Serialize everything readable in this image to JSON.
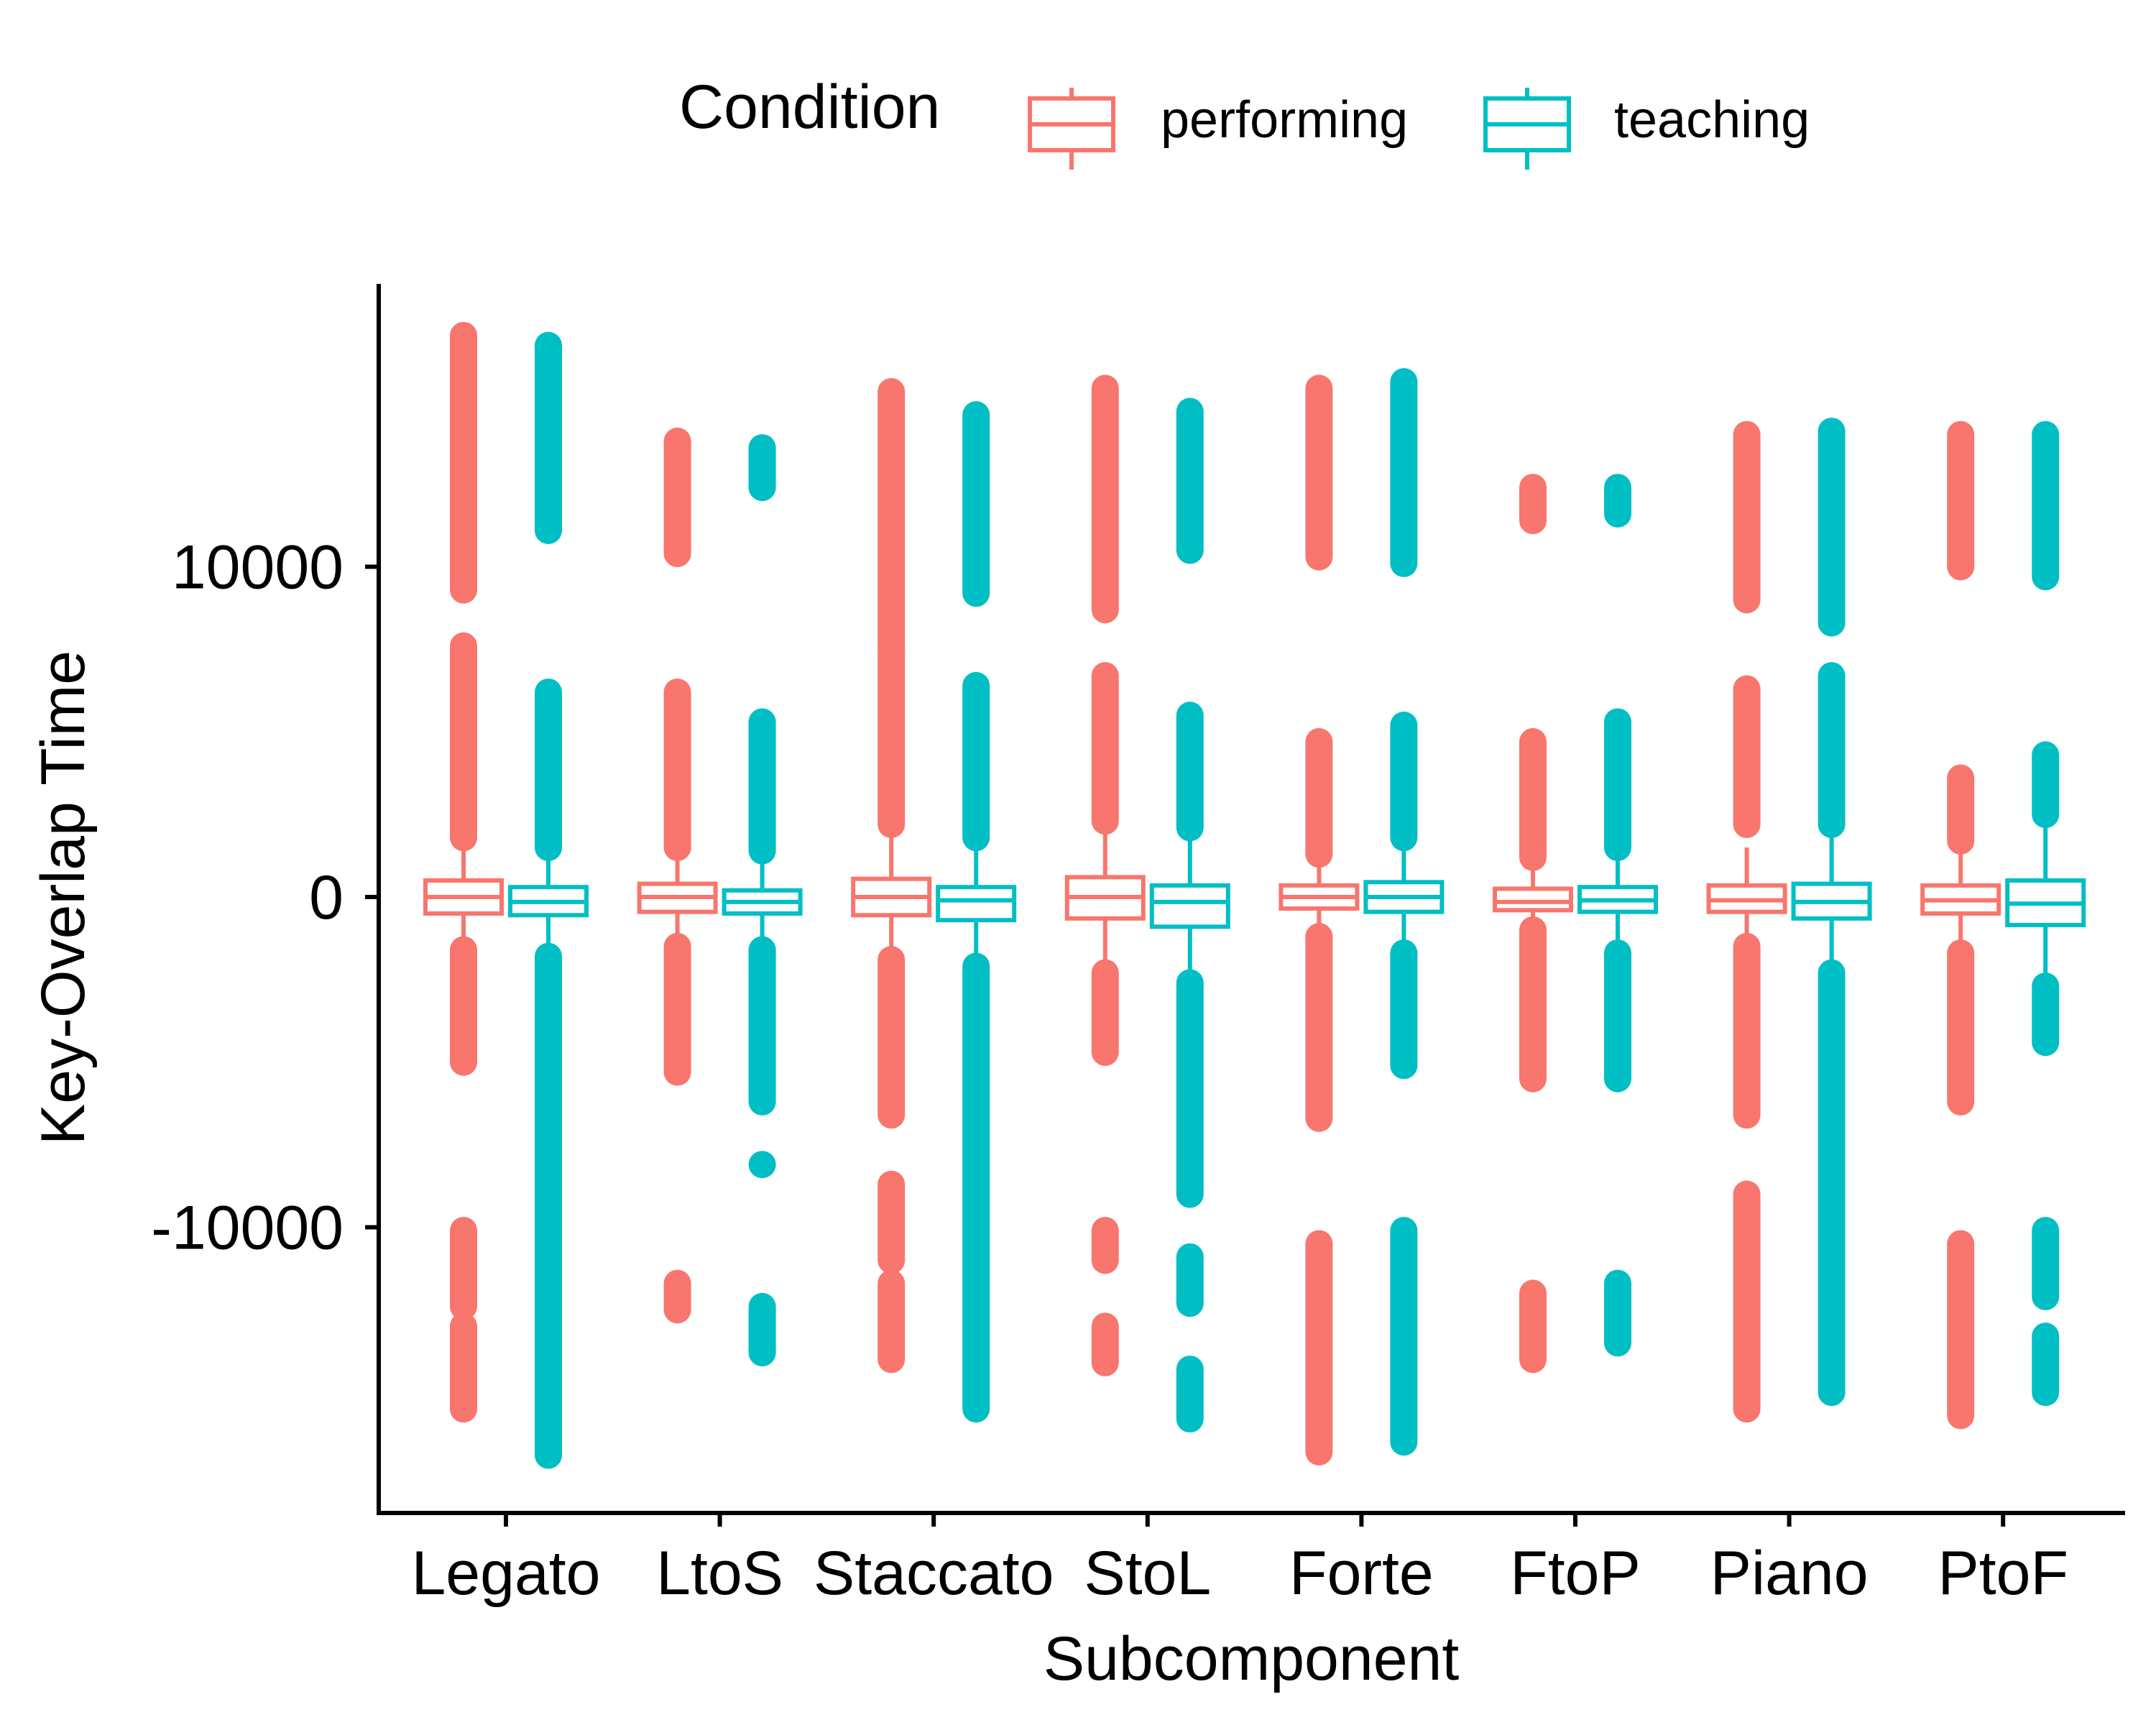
{
  "chart_data": {
    "type": "box",
    "xlabel": "Subcomponent",
    "ylabel": "Key-Overlap Time",
    "categories": [
      "Legato",
      "LtoS",
      "Staccato",
      "StoL",
      "Forte",
      "FtoP",
      "Piano",
      "PtoF"
    ],
    "ylim": [
      -18800,
      18200
    ],
    "yticks": [
      -10000,
      0,
      10000
    ],
    "ytick_labels": [
      "-10000",
      "0",
      "10000"
    ],
    "legend": {
      "title": "Condition",
      "position": "top"
    },
    "series": [
      {
        "name": "performing",
        "color": "#F8766D",
        "boxes": [
          {
            "q1": -500,
            "median": 0,
            "q3": 500,
            "whisker_low": -1500,
            "whisker_high": 1500
          },
          {
            "q1": -450,
            "median": 0,
            "q3": 400,
            "whisker_low": -1500,
            "whisker_high": 1500
          },
          {
            "q1": -550,
            "median": 0,
            "q3": 550,
            "whisker_low": -1800,
            "whisker_high": 1800
          },
          {
            "q1": -650,
            "median": 0,
            "q3": 600,
            "whisker_low": -1900,
            "whisker_high": 1900
          },
          {
            "q1": -350,
            "median": 0,
            "q3": 350,
            "whisker_low": -1200,
            "whisker_high": 1200
          },
          {
            "q1": -400,
            "median": -150,
            "q3": 250,
            "whisker_low": -1000,
            "whisker_high": 1000
          },
          {
            "q1": -450,
            "median": -100,
            "q3": 350,
            "whisker_low": -1500,
            "whisker_high": 1500
          },
          {
            "q1": -500,
            "median": -100,
            "q3": 350,
            "whisker_low": -1700,
            "whisker_high": 1700
          }
        ],
        "outlier_ranges": [
          [
            [
              1800,
              7600
            ],
            [
              9300,
              17000
            ],
            [
              -5000,
              -1600
            ],
            [
              -12400,
              -10100
            ],
            [
              -15500,
              -13000
            ]
          ],
          [
            [
              1500,
              6200
            ],
            [
              10400,
              13800
            ],
            [
              -5300,
              -1500
            ],
            [
              -12500,
              -11700
            ]
          ],
          [
            [
              2200,
              7500
            ],
            [
              7500,
              15300
            ],
            [
              -6600,
              -1900
            ],
            [
              -11000,
              -8700
            ],
            [
              -14000,
              -11700
            ]
          ],
          [
            [
              2300,
              6700
            ],
            [
              8700,
              15400
            ],
            [
              -4700,
              -2300
            ],
            [
              -11000,
              -10100
            ],
            [
              -14100,
              -13000
            ]
          ],
          [
            [
              1300,
              4700
            ],
            [
              10300,
              15400
            ],
            [
              -6700,
              -1200
            ],
            [
              -16800,
              -10500
            ]
          ],
          [
            [
              1200,
              4700
            ],
            [
              11400,
              12400
            ],
            [
              -5500,
              -1000
            ],
            [
              -14000,
              -12000
            ]
          ],
          [
            [
              2200,
              6300
            ],
            [
              9000,
              14000
            ],
            [
              -6600,
              -1500
            ],
            [
              -15500,
              -9000
            ]
          ],
          [
            [
              1700,
              3600
            ],
            [
              10000,
              14000
            ],
            [
              -6200,
              -1700
            ],
            [
              -15700,
              -10500
            ]
          ]
        ]
      },
      {
        "name": "teaching",
        "color": "#00BFC4",
        "boxes": [
          {
            "q1": -550,
            "median": -150,
            "q3": 300,
            "whisker_low": -1800,
            "whisker_high": 1500
          },
          {
            "q1": -500,
            "median": -150,
            "q3": 200,
            "whisker_low": -1600,
            "whisker_high": 1400
          },
          {
            "q1": -700,
            "median": -100,
            "q3": 300,
            "whisker_low": -2100,
            "whisker_high": 1800
          },
          {
            "q1": -900,
            "median": -150,
            "q3": 350,
            "whisker_low": -2600,
            "whisker_high": 2100
          },
          {
            "q1": -450,
            "median": 0,
            "q3": 450,
            "whisker_low": -1700,
            "whisker_high": 1800
          },
          {
            "q1": -450,
            "median": -100,
            "q3": 300,
            "whisker_low": -1700,
            "whisker_high": 1500
          },
          {
            "q1": -650,
            "median": -150,
            "q3": 400,
            "whisker_low": -2300,
            "whisker_high": 2200
          },
          {
            "q1": -850,
            "median": -200,
            "q3": 500,
            "whisker_low": -2700,
            "whisker_high": 2500
          }
        ],
        "outlier_ranges": [
          [
            [
              1500,
              6200
            ],
            [
              11100,
              16700
            ],
            [
              -16900,
              -1800
            ]
          ],
          [
            [
              1400,
              5300
            ],
            [
              12400,
              13600
            ],
            [
              -6200,
              -1600
            ],
            [
              -8100,
              -8100
            ],
            [
              -13800,
              -12400
            ]
          ],
          [
            [
              1800,
              6400
            ],
            [
              9200,
              14600
            ],
            [
              -15500,
              -2100
            ]
          ],
          [
            [
              2100,
              5500
            ],
            [
              10500,
              14700
            ],
            [
              -9000,
              -2600
            ],
            [
              -12300,
              -10900
            ],
            [
              -15800,
              -14300
            ]
          ],
          [
            [
              1800,
              5200
            ],
            [
              10100,
              15600
            ],
            [
              -5100,
              -1700
            ],
            [
              -16500,
              -10100
            ]
          ],
          [
            [
              1500,
              5300
            ],
            [
              11600,
              12400
            ],
            [
              -5500,
              -1700
            ],
            [
              -13500,
              -11700
            ]
          ],
          [
            [
              2200,
              6700
            ],
            [
              8300,
              14100
            ],
            [
              -15000,
              -2300
            ]
          ],
          [
            [
              2500,
              4300
            ],
            [
              9700,
              14000
            ],
            [
              -4400,
              -2700
            ],
            [
              -12100,
              -10100
            ],
            [
              -15000,
              -13300
            ]
          ]
        ]
      }
    ]
  }
}
